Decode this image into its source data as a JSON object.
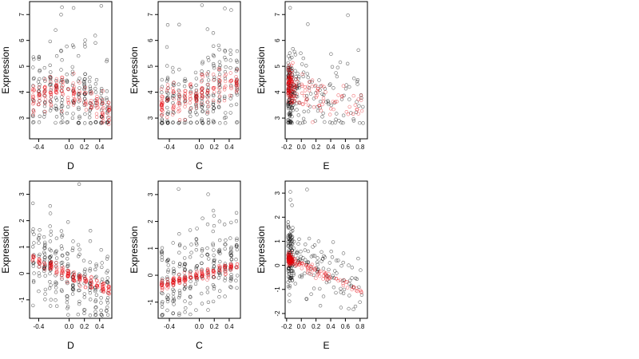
{
  "chart_data": [
    {
      "type": "scatter",
      "xlabel": "D",
      "ylabel": "Expression",
      "xlim": [
        -0.52,
        0.56
      ],
      "ylim": [
        2.2,
        7.5
      ],
      "xticks": [
        -0.4,
        0.0,
        0.2,
        0.4
      ],
      "xtick_labels": [
        "-0.4",
        "0.0",
        "0.2",
        "0.4"
      ],
      "yticks": [
        3,
        4,
        5,
        6,
        7
      ],
      "ytick_labels": [
        "3",
        "4",
        "5",
        "6",
        "7"
      ],
      "series": [
        {
          "color": "#000000",
          "seed": 11,
          "n": 220,
          "model": "column",
          "x_range": [
            -0.47,
            0.5
          ],
          "centers": [
            [
              -0.47,
              3.9
            ],
            [
              0.0,
              4.0
            ],
            [
              0.5,
              3.4
            ]
          ],
          "spread": 0.85,
          "floor": 2.8
        },
        {
          "color": "#e8000a",
          "seed": 12,
          "n": 160,
          "model": "column",
          "x_range": [
            -0.47,
            0.52
          ],
          "centers": [
            [
              -0.47,
              3.7
            ],
            [
              -0.1,
              4.2
            ],
            [
              0.2,
              3.8
            ],
            [
              0.52,
              3.1
            ]
          ],
          "spread": 0.3,
          "floor": 2.6
        }
      ]
    },
    {
      "type": "scatter",
      "xlabel": "C",
      "ylabel": "Expression",
      "xlim": [
        -0.55,
        0.55
      ],
      "ylim": [
        2.2,
        7.5
      ],
      "xticks": [
        -0.4,
        0.0,
        0.2,
        0.4
      ],
      "xtick_labels": [
        "-0.4",
        "0.0",
        "0.2",
        "0.4"
      ],
      "yticks": [
        3,
        4,
        5,
        6,
        7
      ],
      "ytick_labels": [
        "3",
        "4",
        "5",
        "6",
        "7"
      ],
      "series": [
        {
          "color": "#000000",
          "seed": 21,
          "n": 220,
          "model": "column",
          "x_range": [
            -0.5,
            0.5
          ],
          "centers": [
            [
              -0.5,
              3.6
            ],
            [
              0.0,
              3.9
            ],
            [
              0.5,
              4.3
            ]
          ],
          "spread": 0.85,
          "floor": 2.8
        },
        {
          "color": "#e8000a",
          "seed": 22,
          "n": 160,
          "model": "column",
          "x_range": [
            -0.5,
            0.5
          ],
          "centers": [
            [
              -0.5,
              3.6
            ],
            [
              0.0,
              3.9
            ],
            [
              0.5,
              4.4
            ]
          ],
          "spread": 0.3,
          "floor": 2.6
        }
      ]
    },
    {
      "type": "scatter",
      "xlabel": "E",
      "ylabel": "Expression",
      "xlim": [
        -0.22,
        0.9
      ],
      "ylim": [
        2.2,
        7.5
      ],
      "xticks": [
        -0.2,
        0.0,
        0.2,
        0.4,
        0.6,
        0.8
      ],
      "xtick_labels": [
        "-0.2",
        "0.0",
        "0.2",
        "0.4",
        "0.6",
        "0.8"
      ],
      "yticks": [
        3,
        4,
        5,
        6,
        7
      ],
      "ytick_labels": [
        "3",
        "4",
        "5",
        "6",
        "7"
      ],
      "series": [
        {
          "color": "#000000",
          "seed": 31,
          "n": 230,
          "model": "skew",
          "x_range": [
            -0.18,
            0.85
          ],
          "centers": [
            [
              -0.18,
              4.1
            ],
            [
              0.3,
              3.6
            ],
            [
              0.85,
              3.4
            ]
          ],
          "spread": 0.75,
          "floor": 2.8
        },
        {
          "color": "#e8000a",
          "seed": 32,
          "n": 160,
          "model": "skew",
          "x_range": [
            -0.18,
            0.85
          ],
          "centers": [
            [
              -0.18,
              4.3
            ],
            [
              0.3,
              3.7
            ],
            [
              0.85,
              3.4
            ]
          ],
          "spread": 0.35,
          "floor": 2.6
        }
      ]
    },
    {
      "type": "scatter",
      "xlabel": "D",
      "ylabel": "Expression",
      "xlim": [
        -0.52,
        0.56
      ],
      "ylim": [
        -1.7,
        3.5
      ],
      "xticks": [
        -0.4,
        0.0,
        0.2,
        0.4
      ],
      "xtick_labels": [
        "-0.4",
        "0.0",
        "0.2",
        "0.4"
      ],
      "yticks": [
        -1,
        0,
        1,
        2,
        3
      ],
      "ytick_labels": [
        "-1",
        "0",
        "1",
        "2",
        "3"
      ],
      "series": [
        {
          "color": "#000000",
          "seed": 41,
          "n": 230,
          "model": "column",
          "x_range": [
            -0.47,
            0.5
          ],
          "centers": [
            [
              -0.47,
              0.6
            ],
            [
              0.0,
              0.0
            ],
            [
              0.5,
              -0.7
            ]
          ],
          "spread": 0.75,
          "floor": -1.6
        },
        {
          "color": "#e8000a",
          "seed": 42,
          "n": 160,
          "model": "trend",
          "x_range": [
            -0.47,
            0.52
          ],
          "centers": [
            [
              -0.47,
              0.55
            ],
            [
              0.0,
              -0.05
            ],
            [
              0.52,
              -0.6
            ]
          ],
          "spread": 0.12,
          "floor": -1.6
        }
      ]
    },
    {
      "type": "scatter",
      "xlabel": "C",
      "ylabel": "Expression",
      "xlim": [
        -0.55,
        0.55
      ],
      "ylim": [
        -1.6,
        3.5
      ],
      "xticks": [
        -0.4,
        0.0,
        0.2,
        0.4
      ],
      "xtick_labels": [
        "-0.4",
        "0.0",
        "0.2",
        "0.4"
      ],
      "yticks": [
        -1,
        0,
        1,
        2,
        3
      ],
      "ytick_labels": [
        "-1",
        "0",
        "1",
        "2",
        "3"
      ],
      "series": [
        {
          "color": "#000000",
          "seed": 51,
          "n": 230,
          "model": "column",
          "x_range": [
            -0.5,
            0.5
          ],
          "centers": [
            [
              -0.5,
              -0.4
            ],
            [
              0.0,
              0.0
            ],
            [
              0.5,
              0.4
            ]
          ],
          "spread": 0.75,
          "floor": -1.5
        },
        {
          "color": "#e8000a",
          "seed": 52,
          "n": 160,
          "model": "trend",
          "x_range": [
            -0.5,
            0.5
          ],
          "centers": [
            [
              -0.5,
              -0.35
            ],
            [
              0.0,
              0.0
            ],
            [
              0.5,
              0.35
            ]
          ],
          "spread": 0.1,
          "floor": -1.5
        }
      ]
    },
    {
      "type": "scatter",
      "xlabel": "E",
      "ylabel": "Expression",
      "xlim": [
        -0.22,
        0.9
      ],
      "ylim": [
        -2.2,
        3.5
      ],
      "xticks": [
        -0.2,
        0.0,
        0.2,
        0.4,
        0.6,
        0.8
      ],
      "xtick_labels": [
        "-0.2",
        "0.0",
        "0.2",
        "0.4",
        "0.6",
        "0.8"
      ],
      "yticks": [
        -2,
        -1,
        0,
        1,
        2,
        3
      ],
      "ytick_labels": [
        "-2",
        "-1",
        "0",
        "1",
        "2",
        "3"
      ],
      "series": [
        {
          "color": "#000000",
          "seed": 61,
          "n": 230,
          "model": "skew",
          "x_range": [
            -0.18,
            0.85
          ],
          "centers": [
            [
              -0.18,
              0.4
            ],
            [
              0.3,
              -0.3
            ],
            [
              0.85,
              -1.1
            ]
          ],
          "spread": 0.65,
          "floor": -2.0
        },
        {
          "color": "#e8000a",
          "seed": 62,
          "n": 160,
          "model": "trendskew",
          "x_range": [
            -0.18,
            0.85
          ],
          "centers": [
            [
              -0.18,
              0.25
            ],
            [
              0.3,
              -0.35
            ],
            [
              0.85,
              -1.1
            ]
          ],
          "spread": 0.1,
          "floor": -2.0
        }
      ]
    }
  ]
}
